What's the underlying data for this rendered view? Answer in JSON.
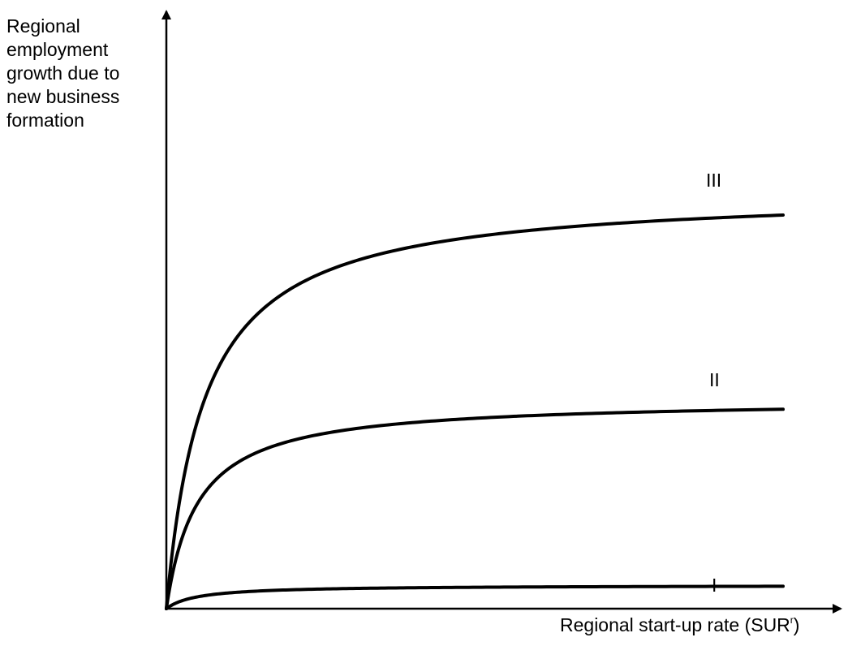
{
  "y_axis_label_lines": [
    "Regional",
    "employment",
    "growth due to",
    "new business",
    "formation"
  ],
  "x_axis_label": "Regional start-up rate (SUR",
  "x_axis_label_superscript": "r",
  "x_axis_label_suffix": ")",
  "curves": [
    {
      "label": "I"
    },
    {
      "label": "II"
    },
    {
      "label": "III"
    }
  ],
  "colors": {
    "line": "#000000",
    "background": "#ffffff"
  }
}
